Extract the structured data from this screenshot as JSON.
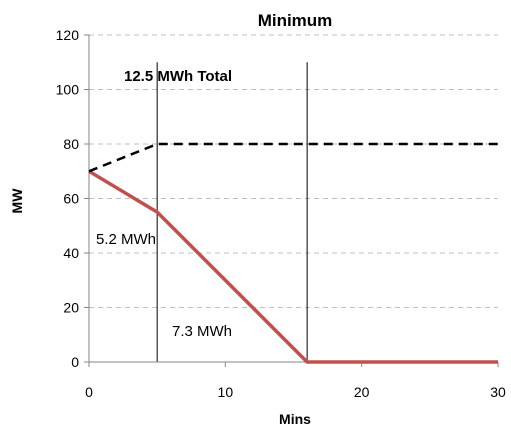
{
  "chart_data": {
    "type": "line",
    "title": "Minimum",
    "xlabel": "Mins",
    "ylabel": "MW",
    "xlim": [
      0,
      30
    ],
    "ylim": [
      0,
      120
    ],
    "x_ticks": [
      "0",
      "10",
      "20",
      "30"
    ],
    "y_ticks": [
      "0",
      "20",
      "40",
      "60",
      "80",
      "100",
      "120"
    ],
    "grid": "horizontal dashed",
    "legend": "none",
    "series": [
      {
        "style": "solid",
        "color": "#c0504d",
        "points": [
          [
            0,
            70
          ],
          [
            5,
            55
          ],
          [
            16,
            0
          ],
          [
            30,
            0
          ]
        ]
      },
      {
        "style": "dashed",
        "color": "#000000",
        "points": [
          [
            0,
            70
          ],
          [
            5,
            80
          ],
          [
            30,
            80
          ]
        ]
      }
    ],
    "vertical_lines": [
      5,
      16
    ],
    "annotations": [
      {
        "text": "12.5 MWh Total",
        "bold": true
      },
      {
        "text": "5.2 MWh",
        "bold": false
      },
      {
        "text": "7.3 MWh",
        "bold": false
      }
    ]
  }
}
